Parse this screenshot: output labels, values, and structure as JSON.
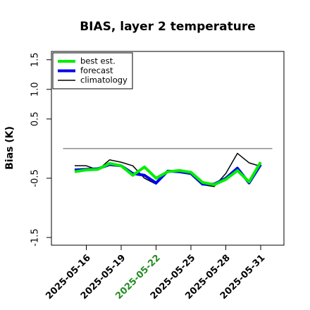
{
  "chart_data": {
    "type": "line",
    "title": "BIAS, layer 2 temperature",
    "y_label": "Bias (K)",
    "x": [
      "2025-05-15",
      "2025-05-16",
      "2025-05-17",
      "2025-05-18",
      "2025-05-19",
      "2025-05-20",
      "2025-05-21",
      "2025-05-22",
      "2025-05-23",
      "2025-05-24",
      "2025-05-25",
      "2025-05-26",
      "2025-05-27",
      "2025-05-28",
      "2025-05-29",
      "2025-05-30",
      "2025-05-31"
    ],
    "series": [
      {
        "name": "best est.",
        "color": "#00ee00",
        "width": 4,
        "values": [
          -0.39,
          -0.36,
          -0.35,
          -0.25,
          -0.29,
          -0.45,
          -0.31,
          -0.5,
          -0.39,
          -0.37,
          -0.4,
          -0.57,
          -0.61,
          -0.52,
          -0.37,
          -0.56,
          -0.23
        ]
      },
      {
        "name": "forecast",
        "color": "#0000ee",
        "width": 4,
        "values": [
          -0.36,
          -0.35,
          -0.34,
          -0.27,
          -0.29,
          -0.42,
          -0.45,
          -0.58,
          -0.38,
          -0.39,
          -0.42,
          -0.6,
          -0.6,
          -0.5,
          -0.33,
          -0.58,
          -0.27
        ]
      },
      {
        "name": "climatology",
        "color": "#000000",
        "width": 1.5,
        "values": [
          -0.29,
          -0.29,
          -0.36,
          -0.19,
          -0.23,
          -0.29,
          -0.5,
          -0.6,
          -0.37,
          -0.39,
          -0.43,
          -0.61,
          -0.64,
          -0.42,
          -0.08,
          -0.24,
          -0.3
        ]
      }
    ],
    "hline": {
      "value": 0,
      "from": "2025-05-14",
      "to": "2025-06-01",
      "color": "#555555"
    },
    "xlim": [
      "2025-05-13",
      "2025-06-02"
    ],
    "xticks": [
      "2025-05-16",
      "2025-05-19",
      "2025-05-22",
      "2025-05-25",
      "2025-05-28",
      "2025-05-31"
    ],
    "xtick_label_colors": [
      "#000000",
      "#000000",
      "#228b22",
      "#000000",
      "#000000",
      "#000000"
    ],
    "ylim": [
      -1.63,
      1.64
    ],
    "yticks": [
      -1.5,
      -0.5,
      0.5,
      {
        "value": 1,
        "label": "1.0"
      },
      1.5
    ],
    "legend": "top-left"
  }
}
